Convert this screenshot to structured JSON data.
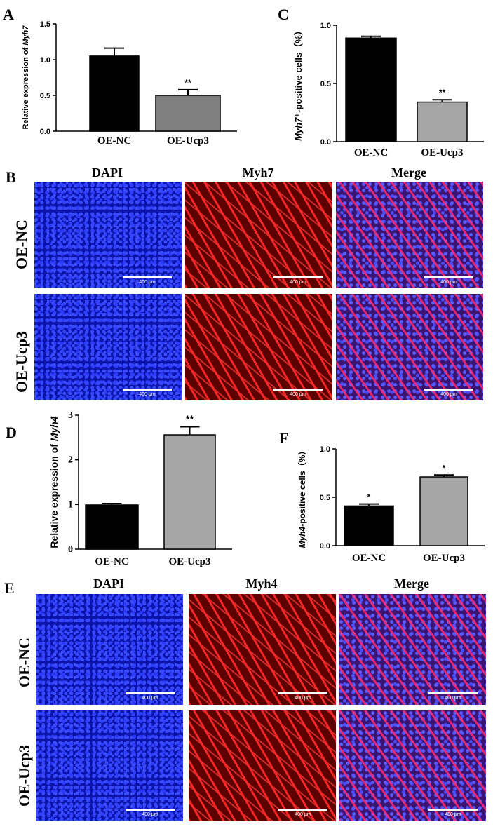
{
  "panels": {
    "A": "A",
    "B": "B",
    "C": "C",
    "D": "D",
    "E": "E",
    "F": "F"
  },
  "imaging": {
    "col_dapi": "DAPI",
    "col_myh7": "Myh7",
    "col_myh4": "Myh4",
    "col_merge": "Merge",
    "row_nc": "OE-NC",
    "row_ucp3": "OE-Ucp3",
    "scale_label": "400 μm"
  },
  "chart_data": [
    {
      "id": "A",
      "type": "bar",
      "categories": [
        "OE-NC",
        "OE-Ucp3"
      ],
      "values": [
        1.05,
        0.5
      ],
      "errors": [
        0.11,
        0.08
      ],
      "colors": [
        "#000000",
        "#808080"
      ],
      "significance": [
        "",
        "**"
      ],
      "ylabel_prefix": "Relative expression of ",
      "ylabel_italic": "Myh7",
      "ylim": [
        0,
        1.5
      ],
      "yticks": [
        "0.0",
        "0.5",
        "1.0",
        "1.5"
      ]
    },
    {
      "id": "C",
      "type": "bar",
      "categories": [
        "OE-NC",
        "OE-Ucp3"
      ],
      "values": [
        0.89,
        0.34
      ],
      "errors": [
        0.015,
        0.02
      ],
      "colors": [
        "#000000",
        "#a6a6a6"
      ],
      "significance": [
        "",
        "**"
      ],
      "ylabel_italic": "Myh7",
      "ylabel_suffix": "⁺-positive cells（%）",
      "ylim": [
        0,
        1.0
      ],
      "yticks": [
        "0.0",
        "0.5",
        "1.0"
      ]
    },
    {
      "id": "D",
      "type": "bar",
      "categories": [
        "OE-NC",
        "OE-Ucp3"
      ],
      "values": [
        0.99,
        2.56
      ],
      "errors": [
        0.03,
        0.18
      ],
      "colors": [
        "#000000",
        "#a6a6a6"
      ],
      "significance": [
        "",
        "**"
      ],
      "ylabel_prefix": "Relative expression of ",
      "ylabel_italic": "Myh4",
      "ylim": [
        0,
        3
      ],
      "yticks": [
        "0",
        "1",
        "2",
        "3"
      ]
    },
    {
      "id": "F",
      "type": "bar",
      "categories": [
        "OE-NC",
        "OE-Ucp3"
      ],
      "values": [
        0.41,
        0.71
      ],
      "errors": [
        0.02,
        0.02
      ],
      "colors": [
        "#000000",
        "#a6a6a6"
      ],
      "significance": [
        "*",
        "*"
      ],
      "ylabel_italic": "Myh4",
      "ylabel_suffix": "-positive cells（%）",
      "ylim": [
        0,
        1.0
      ],
      "yticks": [
        "0.0",
        "0.5",
        "1.0"
      ]
    }
  ]
}
